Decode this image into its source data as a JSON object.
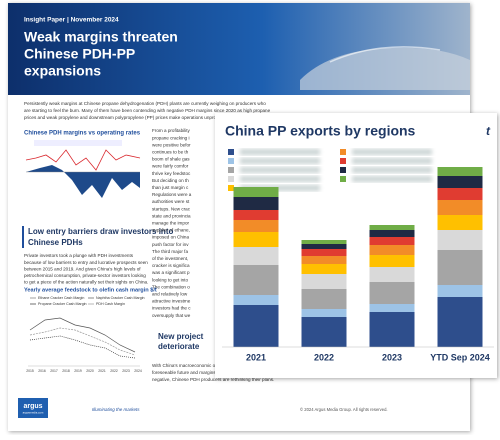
{
  "header": {
    "kicker": "Insight Paper | November 2024",
    "title": [
      "Weak margins threaten",
      "Chinese PDH-PP",
      "expansions"
    ]
  },
  "intro": [
    "Persistently weak margins at Chinese propane dehydrogenation (PDH) plants are currently weighing on producers who",
    "are starting to feel the burn. Many of them have been contending with negative PDH margins since 2020 as high propane",
    "prices and weak propylene and downstream polypropylene (PP) prices make operations unprofitable."
  ],
  "left": {
    "chart1_title": "Chinese PDH margins vs operating rates",
    "heading": [
      "Low entry barriers draw investors into",
      "Chinese PDHs"
    ],
    "paragraph": [
      "Private investors took a plunge with PDH investments",
      "because of low barriers to entry and lucrative prospects seen",
      "between 2015 and 2019. And given China's high levels of",
      "petrochemical consumption, private-sector investors looking",
      "to get a piece of the action naturally set their sights on China."
    ],
    "chart2_title": "Yearly average feedstock to olefin cash margin $/t",
    "chart2_legend": [
      "Ethane Cracker Cash Margin",
      "Naphtha Cracker Cash Margin",
      "Propane Cracker Cash Margin",
      "PDH Cash Margin"
    ],
    "chart2_years": [
      "2015",
      "2016",
      "2017",
      "2018",
      "2019",
      "2020",
      "2021",
      "2022",
      "2023",
      "2024"
    ]
  },
  "right": {
    "lines": [
      "From a profitability",
      "propane cracking i",
      "were positive befor",
      "continues to be th",
      "boom of shale gas",
      "were fairly comfor",
      "thrive key feedstoc",
      "But deciding on th",
      "than just margin c",
      "Regulations were a",
      "authorities were st",
      "startups. New crac",
      "state and provincia",
      "manage the impor",
      "supplier of ethane,",
      "imposed on China",
      "push factor for inv",
      "The third major fa",
      "of the investment,",
      "cracker is significa",
      "was a significant p",
      "looking to get into",
      "The combination o",
      "and relatively low",
      "attractive investme",
      "investors had the c",
      "oversupply that we"
    ],
    "heading": [
      "New project",
      "deteriorate"
    ],
    "closing": [
      "With China's macroeconomic outlook staying murky for the",
      "foreseeable future and margins likely to stay persistently",
      "negative, Chinese PDH producers are rethinking their plans."
    ]
  },
  "footer": {
    "logo": "argus",
    "logo_sub": "argusmedia.com",
    "tagline": "Illuminating the markets",
    "copyright": "© 2024 Argus Media Group. All rights reserved."
  },
  "chart_data": {
    "type": "stacked_bar",
    "title": "China PP exports by regions",
    "unit": "t",
    "categories": [
      "2021",
      "2022",
      "2023",
      "YTD Sep 2024"
    ],
    "series": [
      {
        "color": "#2e4e8c",
        "values": [
          42,
          30,
          35,
          50
        ]
      },
      {
        "color": "#9dc3e6",
        "values": [
          10,
          8,
          8,
          12
        ]
      },
      {
        "color": "#a5a5a5",
        "values": [
          30,
          20,
          22,
          35
        ]
      },
      {
        "color": "#d9d9d9",
        "values": [
          18,
          15,
          15,
          20
        ]
      },
      {
        "color": "#ffc000",
        "values": [
          15,
          10,
          12,
          15
        ]
      },
      {
        "color": "#f28c28",
        "values": [
          12,
          8,
          10,
          15
        ]
      },
      {
        "color": "#e03c31",
        "values": [
          10,
          7,
          8,
          12
        ]
      },
      {
        "color": "#1f2a44",
        "values": [
          13,
          5,
          7,
          12
        ]
      },
      {
        "color": "#70ad47",
        "values": [
          10,
          4,
          5,
          9
        ]
      }
    ]
  }
}
